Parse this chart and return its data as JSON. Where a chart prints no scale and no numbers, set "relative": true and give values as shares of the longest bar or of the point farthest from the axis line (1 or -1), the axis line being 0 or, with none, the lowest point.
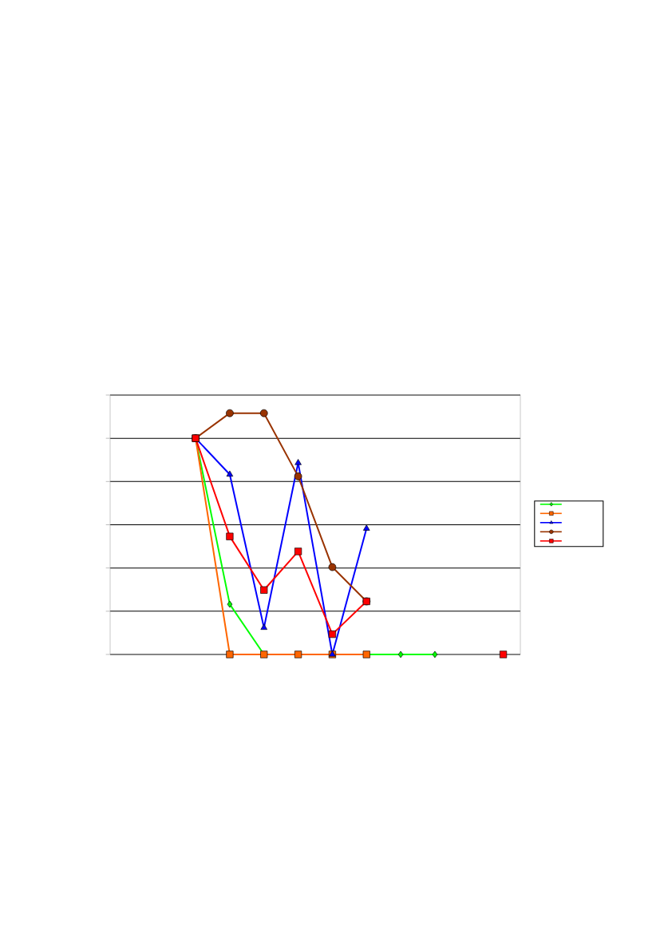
{
  "chart_data": {
    "type": "line",
    "relative": true,
    "grid": "y",
    "categories": [
      null,
      null,
      null,
      null,
      null,
      null,
      null,
      null,
      null,
      null,
      null,
      null
    ],
    "series": [
      {
        "color": "#00ff00",
        "marker": "diamond",
        "values": [
          null,
          null,
          0.896,
          0.208,
          0,
          0,
          0,
          0,
          0,
          0,
          null,
          null
        ]
      },
      {
        "color": "#ff6600",
        "marker": "square",
        "values": [
          null,
          null,
          0.896,
          0,
          0,
          0,
          0,
          0,
          null,
          null,
          null,
          null
        ]
      },
      {
        "color": "#0000ff",
        "marker": "triangle",
        "values": [
          null,
          null,
          0.896,
          0.746,
          0.111,
          0.794,
          0,
          0.522,
          null,
          null,
          null,
          null
        ]
      },
      {
        "color": "#993300",
        "marker": "circle",
        "values": [
          null,
          null,
          0.896,
          1,
          1,
          0.738,
          0.362,
          0.22,
          null,
          null,
          null,
          null
        ]
      },
      {
        "color": "#ff0000",
        "marker": "square",
        "values": [
          null,
          null,
          0.896,
          0.489,
          0.267,
          0.427,
          0.084,
          0.22,
          null,
          null,
          null,
          0
        ]
      }
    ]
  }
}
